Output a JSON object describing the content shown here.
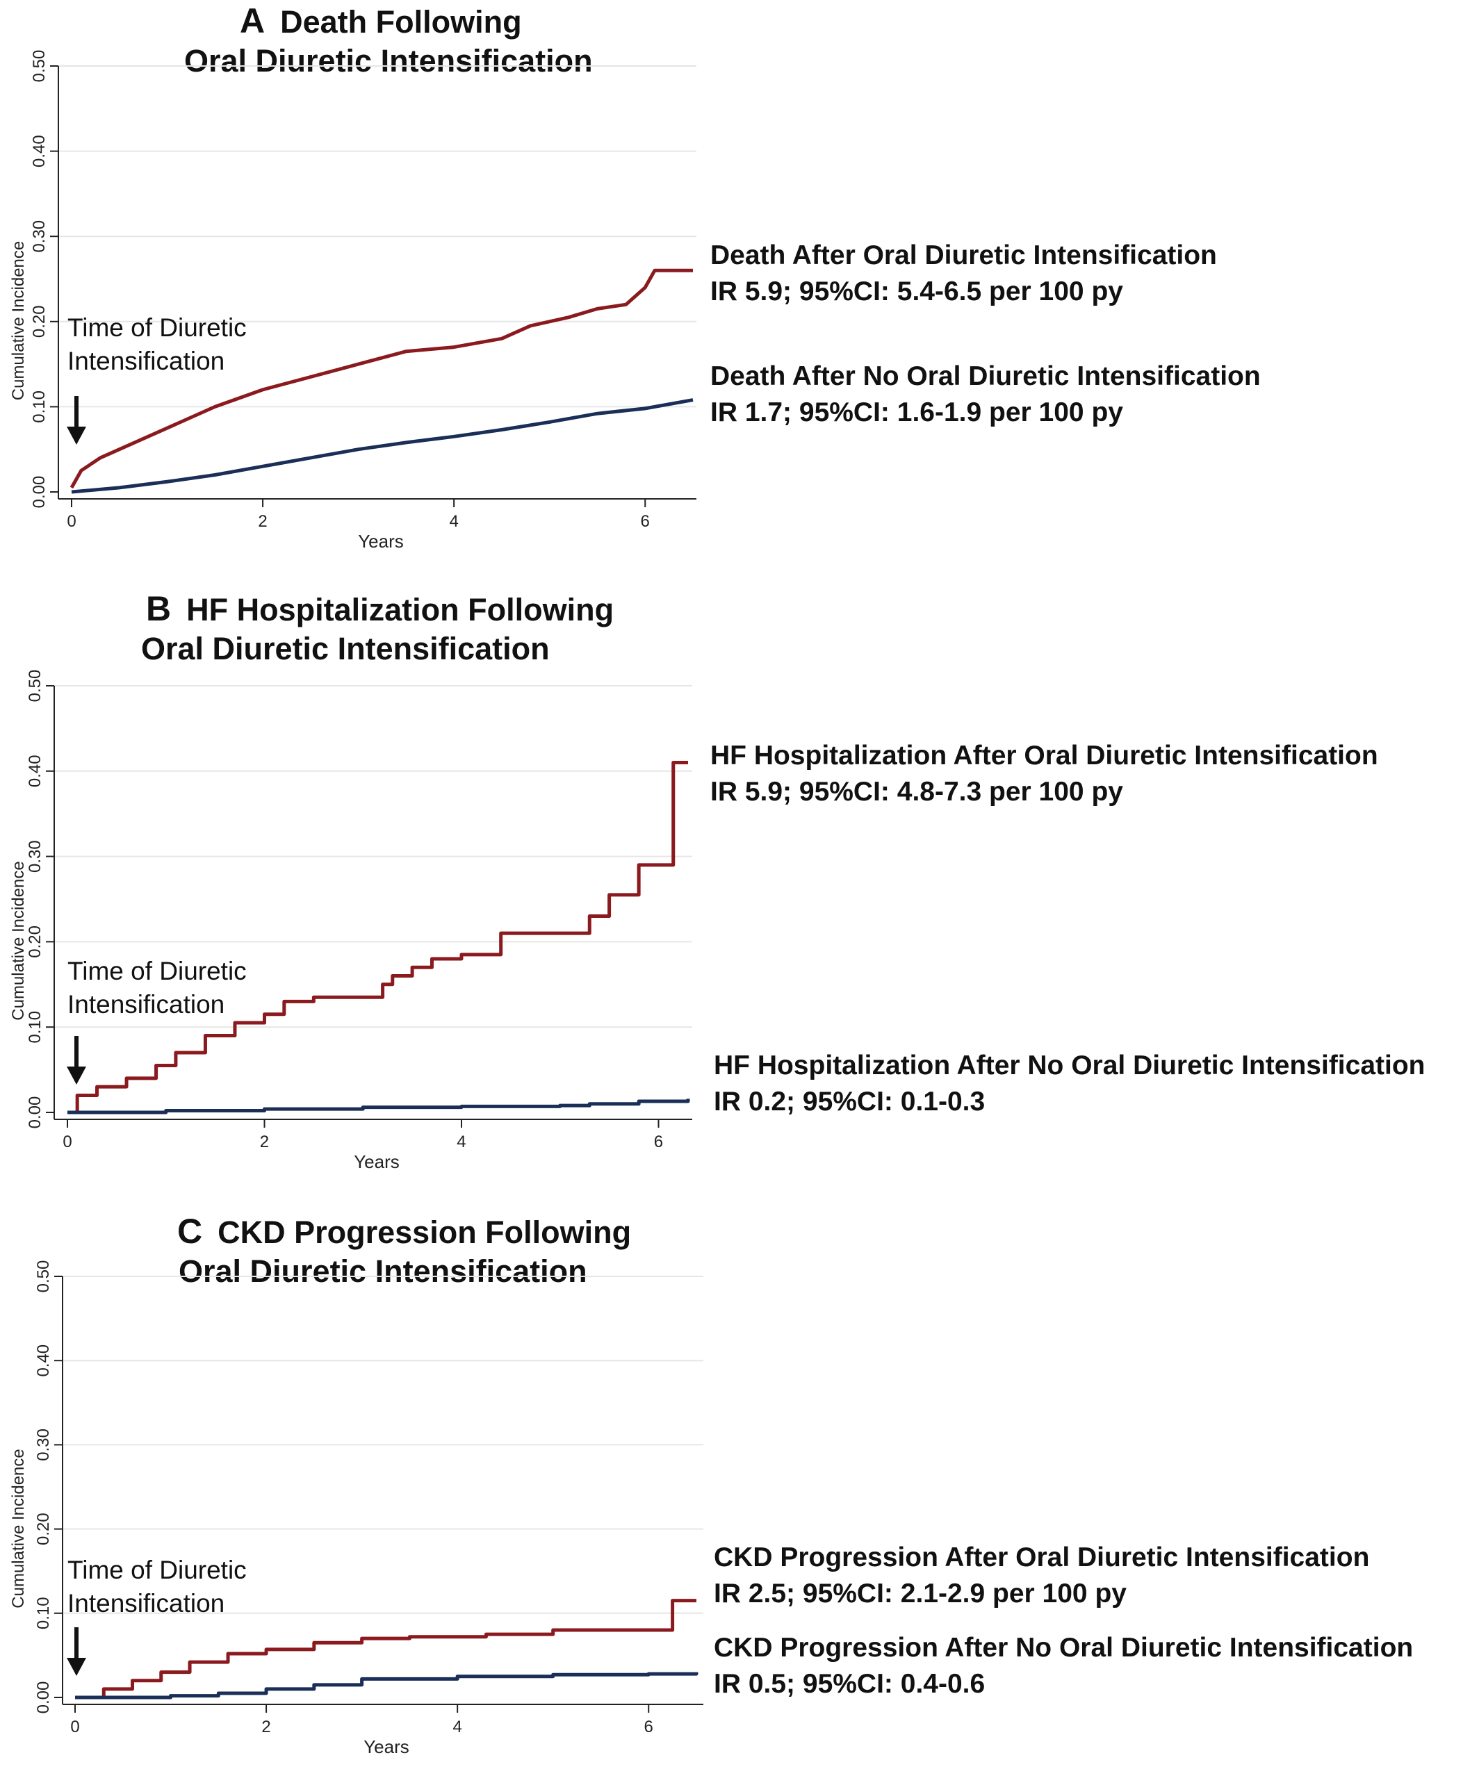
{
  "panels": [
    {
      "id": "A",
      "letter": "A",
      "title_line1": "Death Following",
      "title_line2": "Oral Diuretic Intensification",
      "annotation_line1": "Time of Diuretic",
      "annotation_line2": "Intensification",
      "label_red_line1": "Death After Oral Diuretic Intensification",
      "label_red_line2": "IR 5.9; 95%CI: 5.4-6.5 per 100 py",
      "label_blue_line1": "Death After No Oral Diuretic Intensification",
      "label_blue_line2": "IR 1.7; 95%CI: 1.6-1.9 per 100 py"
    },
    {
      "id": "B",
      "letter": "B",
      "title_line1": "HF Hospitalization Following",
      "title_line2": "Oral Diuretic Intensification",
      "annotation_line1": "Time of Diuretic",
      "annotation_line2": "Intensification",
      "label_red_line1": "HF Hospitalization After Oral Diuretic Intensification",
      "label_red_line2": "IR 5.9; 95%CI: 4.8-7.3 per 100 py",
      "label_blue_line1": "HF Hospitalization After No Oral Diuretic Intensification",
      "label_blue_line2": "IR 0.2; 95%CI: 0.1-0.3"
    },
    {
      "id": "C",
      "letter": "C",
      "title_line1": "CKD Progression Following",
      "title_line2": "Oral Diuretic Intensification",
      "annotation_line1": "Time of Diuretic",
      "annotation_line2": "Intensification",
      "label_red_line1": "CKD Progression After  Oral Diuretic Intensification",
      "label_red_line2": "IR 2.5; 95%CI: 2.1-2.9 per 100 py",
      "label_blue_line1": "CKD Progression After No Oral Diuretic Intensification",
      "label_blue_line2": "IR 0.5; 95%CI: 0.4-0.6"
    }
  ],
  "colors": {
    "red": "#8b1a1f",
    "blue": "#1a2e57",
    "axis": "#222222",
    "grid": "#e6e6e6"
  },
  "chart_data": [
    {
      "type": "line",
      "panel": "A",
      "title": "Death Following Oral Diuretic Intensification",
      "xlabel": "Years",
      "ylabel": "Cumulative Incidence",
      "xlim": [
        0,
        6.5
      ],
      "ylim": [
        0,
        0.5
      ],
      "xticks": [
        0,
        2,
        4,
        6
      ],
      "xtick_labels": [
        "0",
        "2",
        "4",
        "6"
      ],
      "yticks": [
        0,
        0.1,
        0.2,
        0.3,
        0.4,
        0.5
      ],
      "ytick_labels": [
        "0.00",
        "0.10",
        "0.20",
        "0.30",
        "0.40",
        "0.50"
      ],
      "grid": true,
      "step": false,
      "series": [
        {
          "color": "red",
          "x": [
            0,
            0.1,
            0.3,
            0.5,
            0.8,
            1.0,
            1.5,
            2.0,
            2.5,
            3.0,
            3.5,
            4.0,
            4.5,
            4.8,
            5.2,
            5.5,
            5.8,
            6.0,
            6.1,
            6.5
          ],
          "y": [
            0.005,
            0.025,
            0.04,
            0.05,
            0.065,
            0.075,
            0.1,
            0.12,
            0.135,
            0.15,
            0.165,
            0.17,
            0.18,
            0.195,
            0.205,
            0.215,
            0.22,
            0.24,
            0.26,
            0.26
          ]
        },
        {
          "color": "blue",
          "x": [
            0,
            0.5,
            1.0,
            1.5,
            2.0,
            2.5,
            3.0,
            3.5,
            4.0,
            4.5,
            5.0,
            5.5,
            6.0,
            6.5
          ],
          "y": [
            0,
            0.005,
            0.012,
            0.02,
            0.03,
            0.04,
            0.05,
            0.058,
            0.065,
            0.073,
            0.082,
            0.092,
            0.098,
            0.108
          ]
        }
      ]
    },
    {
      "type": "line",
      "panel": "B",
      "title": "HF Hospitalization Following Oral Diuretic Intensification",
      "xlabel": "Years",
      "ylabel": "Cumulative Incidence",
      "xlim": [
        0,
        6.3
      ],
      "ylim": [
        0,
        0.5
      ],
      "xticks": [
        0,
        2,
        4,
        6
      ],
      "xtick_labels": [
        "0",
        "2",
        "4",
        "6"
      ],
      "yticks": [
        0,
        0.1,
        0.2,
        0.3,
        0.4,
        0.5
      ],
      "ytick_labels": [
        "0.00",
        "0.10",
        "0.20",
        "0.30",
        "0.40",
        "0.50"
      ],
      "grid": true,
      "step": true,
      "series": [
        {
          "color": "red",
          "x": [
            0,
            0.1,
            0.3,
            0.6,
            0.9,
            1.1,
            1.4,
            1.7,
            2.0,
            2.2,
            2.5,
            3.2,
            3.3,
            3.5,
            3.7,
            4.0,
            4.4,
            5.3,
            5.5,
            5.8,
            6.15,
            6.3
          ],
          "y": [
            0,
            0.02,
            0.03,
            0.04,
            0.055,
            0.07,
            0.09,
            0.105,
            0.115,
            0.13,
            0.135,
            0.15,
            0.16,
            0.17,
            0.18,
            0.185,
            0.21,
            0.23,
            0.255,
            0.29,
            0.41,
            0.41
          ]
        },
        {
          "color": "blue",
          "x": [
            0,
            1.0,
            2.0,
            3.0,
            4.0,
            5.0,
            5.3,
            5.8,
            6.3
          ],
          "y": [
            0,
            0.002,
            0.004,
            0.006,
            0.007,
            0.008,
            0.01,
            0.013,
            0.016
          ]
        }
      ]
    },
    {
      "type": "line",
      "panel": "C",
      "title": "CKD Progression Following Oral Diuretic Intensification",
      "xlabel": "Years",
      "ylabel": "Cumulative Incidence",
      "xlim": [
        0,
        6.5
      ],
      "ylim": [
        0,
        0.5
      ],
      "xticks": [
        0,
        2,
        4,
        6
      ],
      "xtick_labels": [
        "0",
        "2",
        "4",
        "6"
      ],
      "yticks": [
        0,
        0.1,
        0.2,
        0.3,
        0.4,
        0.5
      ],
      "ytick_labels": [
        "0.00",
        "0.10",
        "0.20",
        "0.30",
        "0.40",
        "0.50"
      ],
      "grid": true,
      "step": true,
      "series": [
        {
          "color": "red",
          "x": [
            0,
            0.3,
            0.6,
            0.9,
            1.2,
            1.6,
            2.0,
            2.5,
            3.0,
            3.5,
            4.3,
            5.0,
            6.25,
            6.5
          ],
          "y": [
            0,
            0.01,
            0.02,
            0.03,
            0.042,
            0.052,
            0.057,
            0.065,
            0.07,
            0.072,
            0.075,
            0.08,
            0.115,
            0.115
          ]
        },
        {
          "color": "blue",
          "x": [
            0,
            1.0,
            1.5,
            2.0,
            2.5,
            3.0,
            4.0,
            5.0,
            6.0,
            6.5
          ],
          "y": [
            0,
            0.002,
            0.005,
            0.01,
            0.015,
            0.022,
            0.025,
            0.027,
            0.028,
            0.03
          ]
        }
      ]
    }
  ]
}
